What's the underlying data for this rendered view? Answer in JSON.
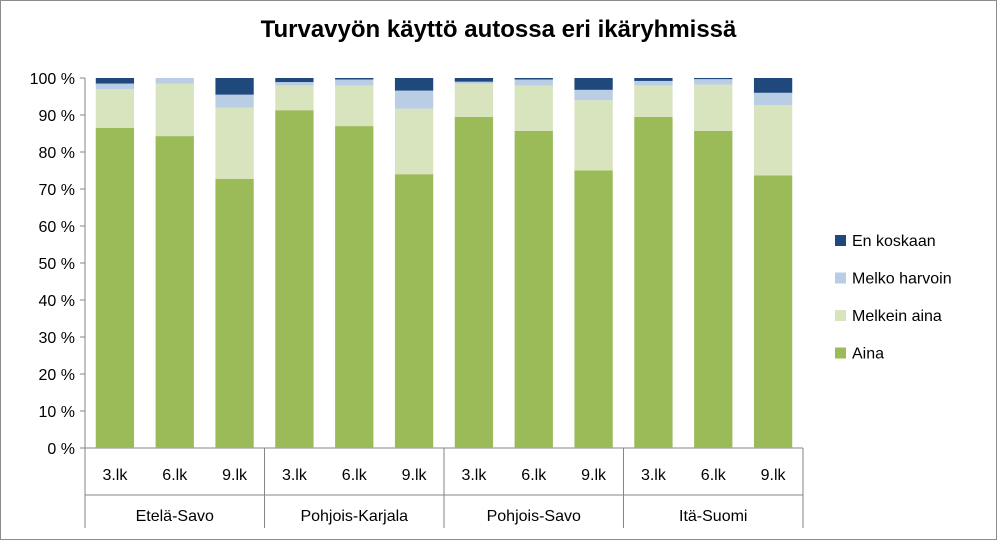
{
  "chart_data": {
    "type": "bar",
    "stacked": "percent",
    "title": "Turvavyön käyttö autossa eri ikäryhmissä",
    "xlabel": "",
    "ylabel": "",
    "ylim": [
      0,
      100
    ],
    "yticks": [
      0,
      10,
      20,
      30,
      40,
      50,
      60,
      70,
      80,
      90,
      100
    ],
    "ytick_labels": [
      "0 %",
      "10 %",
      "20 %",
      "30 %",
      "40 %",
      "50 %",
      "60 %",
      "70 %",
      "80 %",
      "90 %",
      "100 %"
    ],
    "groups": [
      "Etelä-Savo",
      "Pohjois-Karjala",
      "Pohjois-Savo",
      "Itä-Suomi"
    ],
    "categories": [
      "3.lk",
      "6.lk",
      "9.lk",
      "3.lk",
      "6.lk",
      "9.lk",
      "3.lk",
      "6.lk",
      "9.lk",
      "3.lk",
      "6.lk",
      "9.lk"
    ],
    "series": [
      {
        "name": "Aina",
        "color": "#9bbb59",
        "values": [
          86.5,
          84.3,
          72.7,
          91.3,
          87.0,
          74.0,
          89.5,
          85.7,
          75.0,
          89.5,
          85.7,
          73.7
        ]
      },
      {
        "name": "Melkein aina",
        "color": "#d7e4bd",
        "values": [
          10.5,
          14.2,
          19.3,
          6.7,
          11.0,
          17.7,
          9.0,
          12.3,
          19.0,
          8.5,
          12.5,
          19.0
        ]
      },
      {
        "name": "Melko harvoin",
        "color": "#b9cde5",
        "values": [
          1.5,
          1.5,
          3.5,
          0.9,
          1.6,
          4.9,
          0.5,
          1.6,
          2.8,
          1.2,
          1.5,
          3.3
        ]
      },
      {
        "name": "En koskaan",
        "color": "#1f497d",
        "values": [
          1.5,
          0.0,
          4.5,
          1.1,
          0.4,
          3.4,
          1.0,
          0.4,
          3.2,
          0.8,
          0.3,
          4.0
        ]
      }
    ],
    "legend_position": "right",
    "grid": false
  }
}
